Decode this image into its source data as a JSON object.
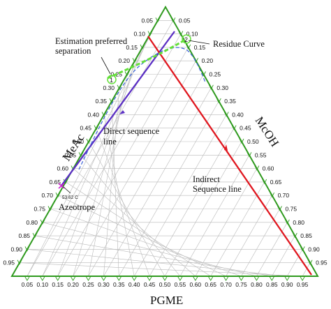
{
  "axes": {
    "left": {
      "name": "MeAc"
    },
    "right": {
      "name": "McOH"
    },
    "bottom": {
      "name": "PGME"
    },
    "ticks": [
      "0.05",
      "0.10",
      "0.15",
      "0.20",
      "0.25",
      "0.30",
      "0.35",
      "0.40",
      "0.45",
      "0.50",
      "0.55",
      "0.60",
      "0.65",
      "0.70",
      "0.75",
      "0.80",
      "0.85",
      "0.90",
      "0.95"
    ]
  },
  "annotations": {
    "estimation_line1": "Estimation preferred",
    "estimation_line2": "separation",
    "residue": "Residue Curve",
    "direct_line1": "Direct sequence",
    "direct_line2": "line",
    "indirect_line1": "Indirect",
    "indirect_line2": "Sequence line",
    "azeotrope": "Azeotrope",
    "azeotrope_temp": "53.62 C",
    "marker1": "1",
    "marker2": "2"
  },
  "colors": {
    "frame": "#2f9a1e",
    "grid": "#b9b9b9",
    "direct_line": "#5b2fc4",
    "indirect_line": "#e0171f",
    "residue_curve": "#3a62d8",
    "estimation": "#64e03a",
    "azeotrope_marker": "#cc1fcf"
  }
}
